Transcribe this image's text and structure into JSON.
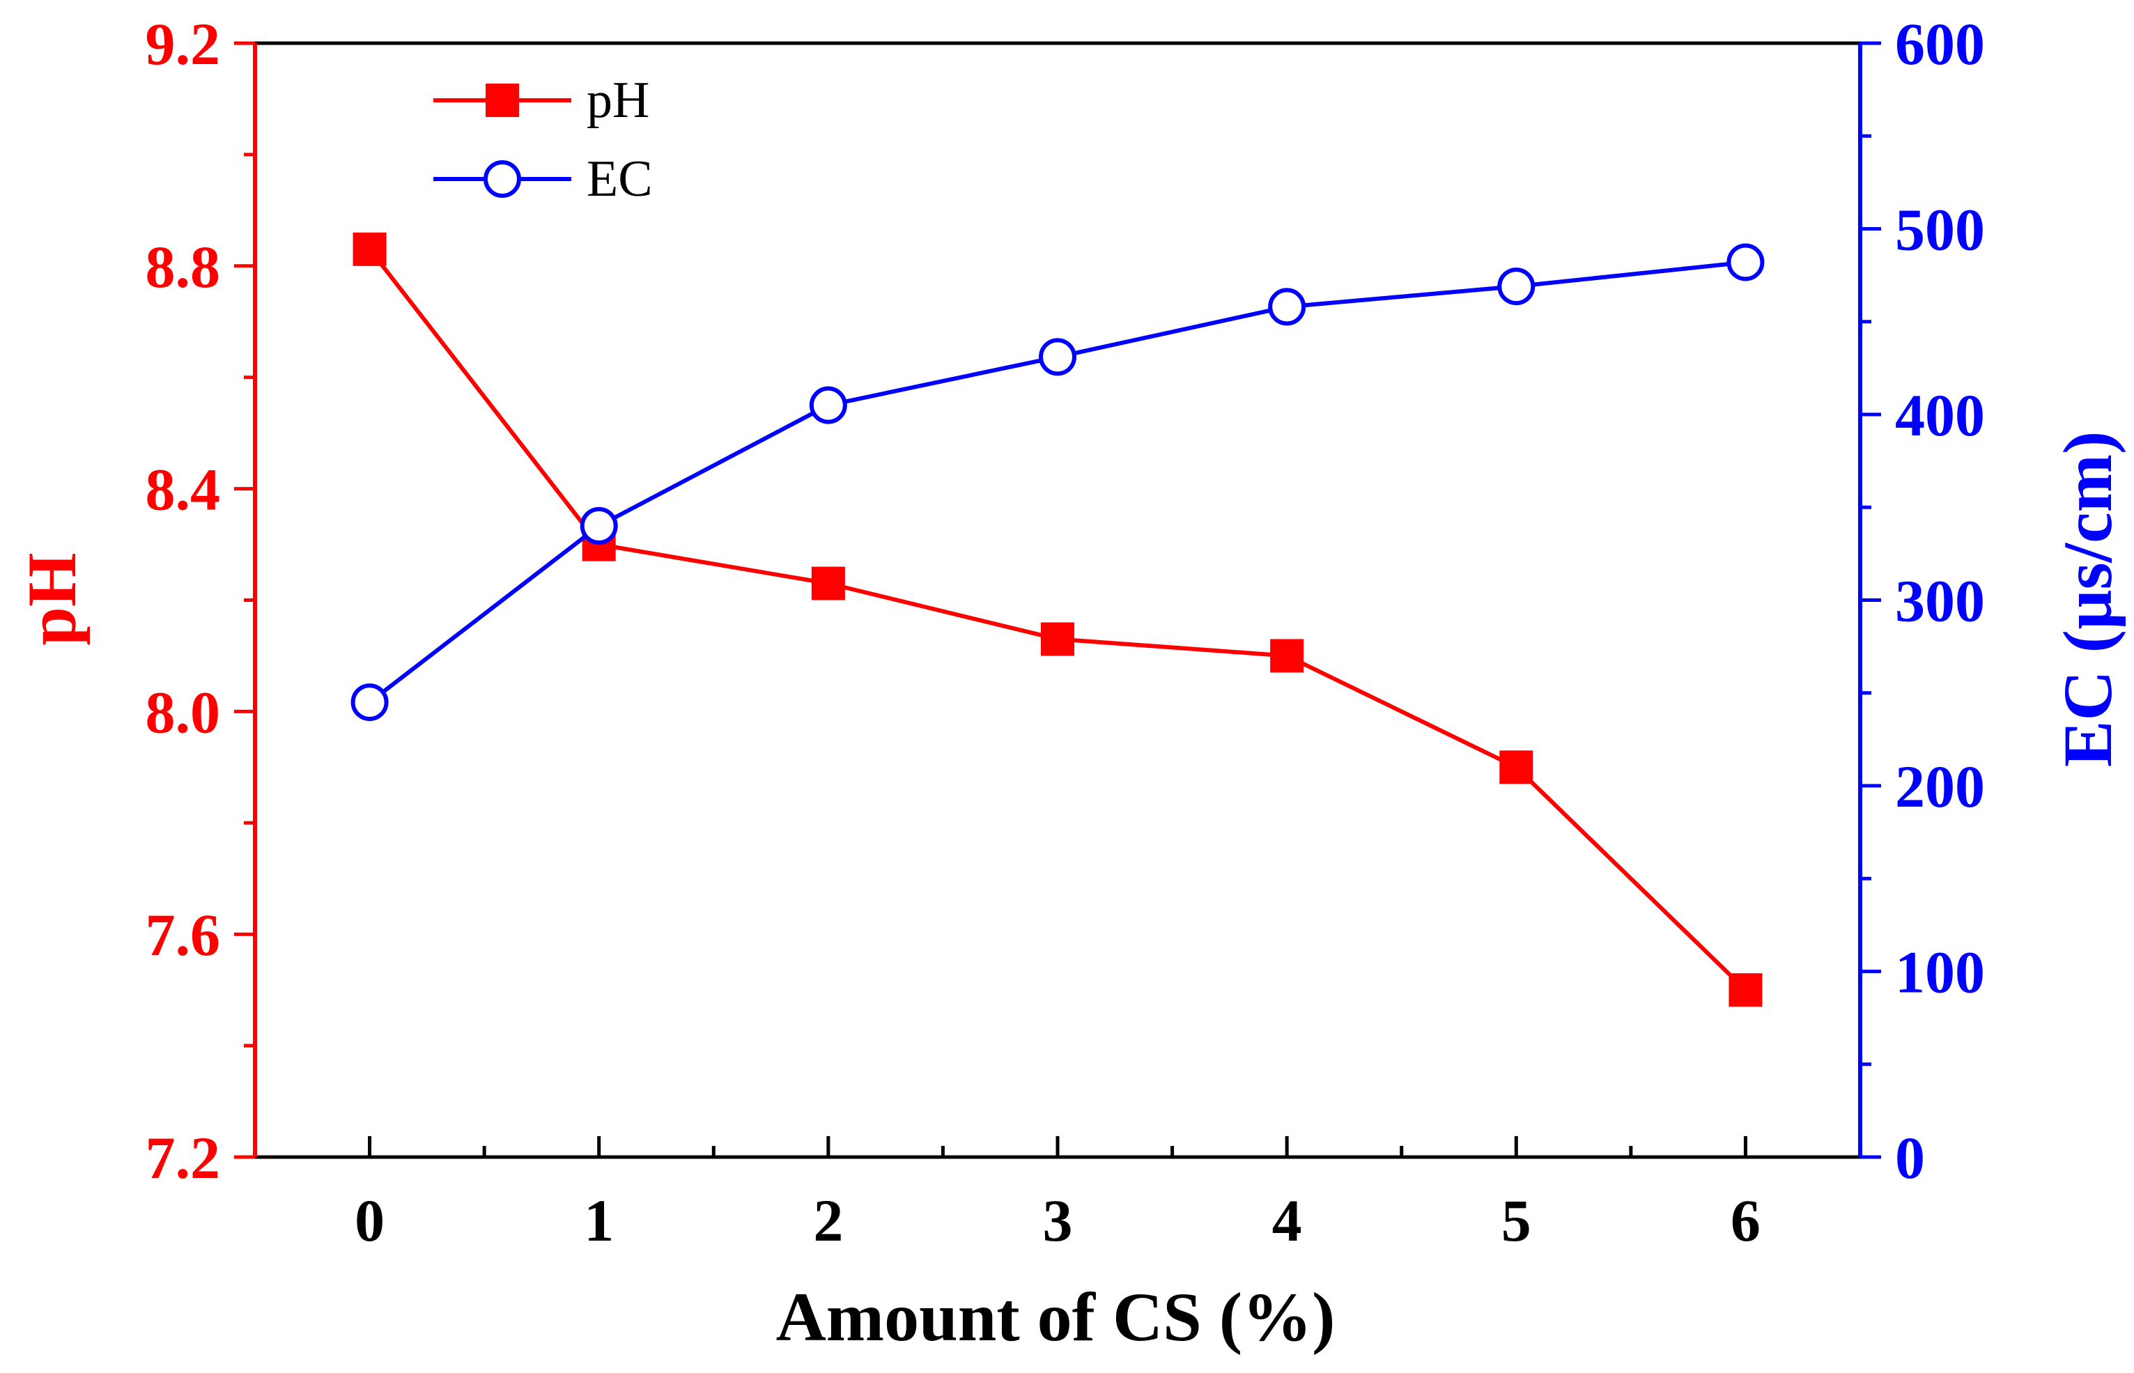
{
  "chart_data": {
    "type": "line",
    "title": "",
    "xlabel": "Amount of CS (%)",
    "x": [
      0,
      1,
      2,
      3,
      4,
      5,
      6
    ],
    "xticks": [
      "0",
      "1",
      "2",
      "3",
      "4",
      "5",
      "6"
    ],
    "xlim": [
      -0.5,
      6.5
    ],
    "y_left": {
      "label": "pH",
      "color": "#ff0000",
      "lim": [
        7.2,
        9.2
      ],
      "ticks": [
        "7.2",
        "7.6",
        "8.0",
        "8.4",
        "8.8",
        "9.2"
      ]
    },
    "y_right": {
      "label": "EC (µs/cm)",
      "color": "#0000ff",
      "lim": [
        0,
        600
      ],
      "ticks": [
        "0",
        "100",
        "200",
        "300",
        "400",
        "500",
        "600"
      ]
    },
    "series": [
      {
        "name": "pH",
        "axis": "left",
        "color": "#ff0000",
        "marker": "filled-square",
        "values": [
          8.83,
          8.3,
          8.23,
          8.13,
          8.1,
          7.9,
          7.5
        ]
      },
      {
        "name": "EC",
        "axis": "right",
        "color": "#0000ff",
        "marker": "open-circle",
        "values": [
          245,
          340,
          405,
          431,
          458,
          469,
          482
        ]
      }
    ],
    "legend_position": "top-left",
    "grid": false
  }
}
